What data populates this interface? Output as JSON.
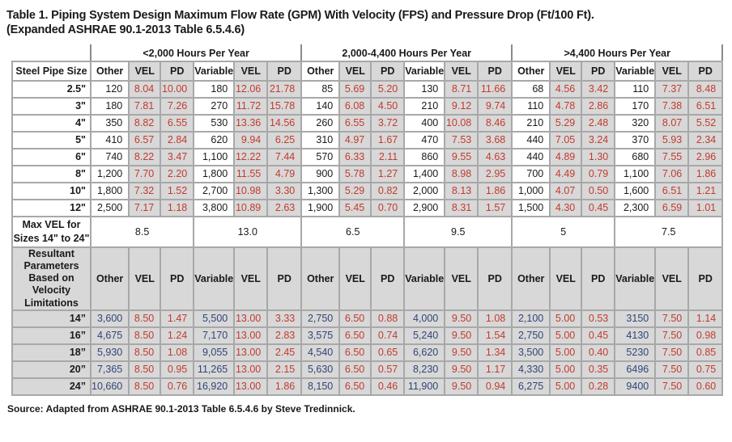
{
  "title_line1": "Table 1. Piping System Design Maximum Flow Rate (GPM) With Velocity (FPS) and Pressure Drop (Ft/100 Ft).",
  "title_line2": "(Expanded ASHRAE 90.1-2013 Table 6.5.4.6)",
  "source": "Source: Adapted from ASHRAE 90.1-2013 Table 6.5.4.6 by Steve Tredinnick.",
  "colors": {
    "accent_red": "#c23b2e",
    "accent_navy": "#304577",
    "cell_gray": "#d8d8d8",
    "grid_gray": "#a8a8a8"
  },
  "table": {
    "corner_label": "Steel Pipe Size",
    "group_headers": [
      "<2,000 Hours Per Year",
      "2,000-4,400 Hours Per Year",
      ">4,400 Hours Per Year"
    ],
    "sub_headers": [
      "Other",
      "VEL",
      "PD",
      "Variable",
      "VEL",
      "PD"
    ],
    "rows": [
      {
        "size": "2.5\"",
        "cells": [
          "120",
          "8.04",
          "10.00",
          "180",
          "12.06",
          "21.78",
          "85",
          "5.69",
          "5.20",
          "130",
          "8.71",
          "11.66",
          "68",
          "4.56",
          "3.42",
          "110",
          "7.37",
          "8.48"
        ]
      },
      {
        "size": "3\"",
        "cells": [
          "180",
          "7.81",
          "7.26",
          "270",
          "11.72",
          "15.78",
          "140",
          "6.08",
          "4.50",
          "210",
          "9.12",
          "9.74",
          "110",
          "4.78",
          "2.86",
          "170",
          "7.38",
          "6.51"
        ]
      },
      {
        "size": "4\"",
        "cells": [
          "350",
          "8.82",
          "6.55",
          "530",
          "13.36",
          "14.56",
          "260",
          "6.55",
          "3.72",
          "400",
          "10.08",
          "8.46",
          "210",
          "5.29",
          "2.48",
          "320",
          "8.07",
          "5.52"
        ]
      },
      {
        "size": "5\"",
        "cells": [
          "410",
          "6.57",
          "2.84",
          "620",
          "9.94",
          "6.25",
          "310",
          "4.97",
          "1.67",
          "470",
          "7.53",
          "3.68",
          "440",
          "7.05",
          "3.24",
          "370",
          "5.93",
          "2.34"
        ]
      },
      {
        "size": "6\"",
        "cells": [
          "740",
          "8.22",
          "3.47",
          "1,100",
          "12.22",
          "7.44",
          "570",
          "6.33",
          "2.11",
          "860",
          "9.55",
          "4.63",
          "440",
          "4.89",
          "1.30",
          "680",
          "7.55",
          "2.96"
        ]
      },
      {
        "size": "8\"",
        "cells": [
          "1,200",
          "7.70",
          "2.20",
          "1,800",
          "11.55",
          "4.79",
          "900",
          "5.78",
          "1.27",
          "1,400",
          "8.98",
          "2.95",
          "700",
          "4.49",
          "0.79",
          "1,100",
          "7.06",
          "1.86"
        ]
      },
      {
        "size": "10\"",
        "cells": [
          "1,800",
          "7.32",
          "1.52",
          "2,700",
          "10.98",
          "3.30",
          "1,300",
          "5.29",
          "0.82",
          "2,000",
          "8.13",
          "1.86",
          "1,000",
          "4.07",
          "0.50",
          "1,600",
          "6.51",
          "1.21"
        ]
      },
      {
        "size": "12\"",
        "cells": [
          "2,500",
          "7.17",
          "1.18",
          "3,800",
          "10.89",
          "2.63",
          "1,900",
          "5.45",
          "0.70",
          "2,900",
          "8.31",
          "1.57",
          "1,500",
          "4.30",
          "0.45",
          "2,300",
          "6.59",
          "1.01"
        ]
      }
    ],
    "max_vel": {
      "label": "Max VEL for Sizes 14\" to 24\"",
      "values": [
        "8.5",
        "13.0",
        "6.5",
        "9.5",
        "5",
        "7.5"
      ]
    },
    "resultant_label": "Resultant Parameters Based on Velocity Limitations",
    "resultant_rows": [
      {
        "size": "14”",
        "cells": [
          "3,600",
          "8.50",
          "1.47",
          "5,500",
          "13.00",
          "3.33",
          "2,750",
          "6.50",
          "0.88",
          "4,000",
          "9.50",
          "1.08",
          "2,100",
          "5.00",
          "0.53",
          "3150",
          "7.50",
          "1.14"
        ]
      },
      {
        "size": "16”",
        "cells": [
          "4,675",
          "8.50",
          "1.24",
          "7,170",
          "13.00",
          "2.83",
          "3,575",
          "6.50",
          "0.74",
          "5,240",
          "9.50",
          "1.54",
          "2,750",
          "5.00",
          "0.45",
          "4130",
          "7.50",
          "0.98"
        ]
      },
      {
        "size": "18”",
        "cells": [
          "5,930",
          "8.50",
          "1.08",
          "9,055",
          "13.00",
          "2.45",
          "4,540",
          "6.50",
          "0.65",
          "6,620",
          "9.50",
          "1.34",
          "3,500",
          "5.00",
          "0.40",
          "5230",
          "7.50",
          "0.85"
        ]
      },
      {
        "size": "20”",
        "cells": [
          "7,365",
          "8.50",
          "0.95",
          "11,265",
          "13.00",
          "2.15",
          "5,630",
          "6.50",
          "0.57",
          "8,230",
          "9.50",
          "1.17",
          "4,330",
          "5.00",
          "0.35",
          "6496",
          "7.50",
          "0.75"
        ]
      },
      {
        "size": "24”",
        "cells": [
          "10,660",
          "8.50",
          "0.76",
          "16,920",
          "13.00",
          "1.86",
          "8,150",
          "6.50",
          "0.46",
          "11,900",
          "9.50",
          "0.94",
          "6,275",
          "5.00",
          "0.28",
          "9400",
          "7.50",
          "0.60"
        ]
      }
    ]
  }
}
